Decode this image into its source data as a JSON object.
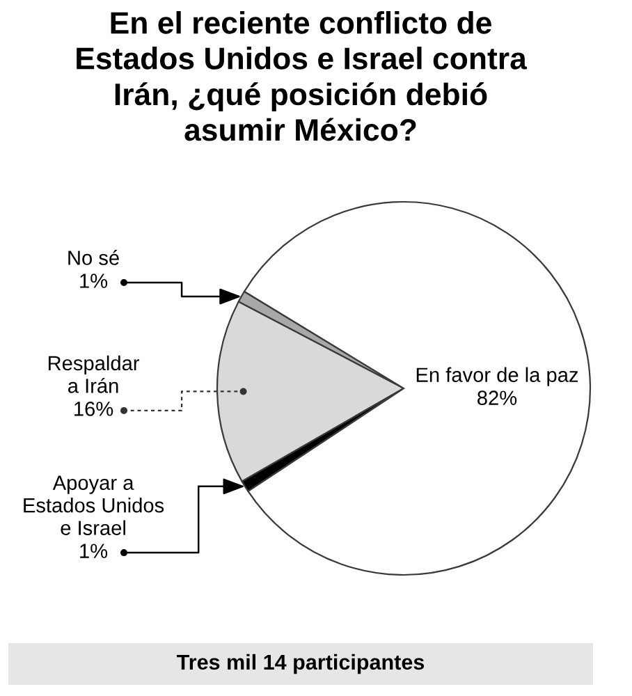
{
  "chart_data": {
    "type": "pie",
    "title": "En el reciente conflicto de\nEstados Unidos e Israel contra\nIrán, ¿qué posición debió\nasumir México?",
    "categories": [
      "No sé",
      "Respaldar\na Irán",
      "Apoyar a\nEstados Unidos\ne Israel",
      "En favor de la paz"
    ],
    "values": [
      1,
      16,
      1,
      82
    ],
    "value_labels": [
      "1%",
      "16%",
      "1%",
      "82%"
    ],
    "colors": [
      "#a8a8a8",
      "#d9d9d9",
      "#000000",
      "#ffffff"
    ],
    "annotations": [
      "Tres mil 14 participantes"
    ]
  }
}
